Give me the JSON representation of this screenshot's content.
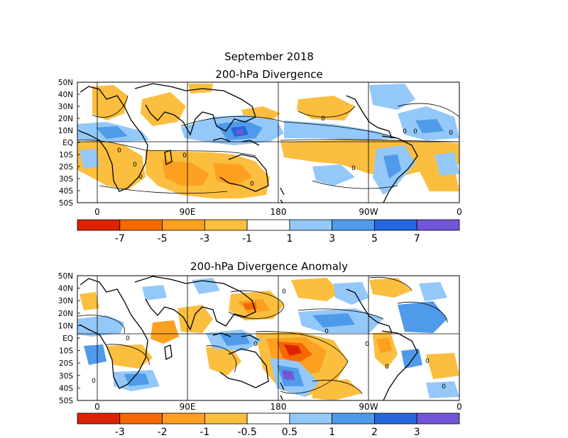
{
  "header": {
    "title": "September 2018"
  },
  "lat_labels": [
    "50N",
    "40N",
    "30N",
    "20N",
    "10N",
    "EQ",
    "10S",
    "20S",
    "30S",
    "40S",
    "50S"
  ],
  "lon_labels": [
    "0",
    "90E",
    "180",
    "90W",
    "0"
  ],
  "colors": {
    "c1": "#dd2200",
    "c2": "#f66800",
    "c3": "#fda020",
    "c4": "#fbbe3e",
    "c5": "#ffffff",
    "c6": "#93c8f8",
    "c7": "#4f9ae9",
    "c8": "#2467df",
    "c9": "#7355d8"
  },
  "panels": [
    {
      "title": "200-hPa Divergence",
      "colorbar": {
        "ticks": [
          "-7",
          "-5",
          "-3",
          "-1",
          "1",
          "3",
          "5",
          "7"
        ],
        "colors": [
          "#dd2200",
          "#f66800",
          "#fda020",
          "#fbbe3e",
          "#ffffff",
          "#93c8f8",
          "#4f9ae9",
          "#2467df",
          "#7355d8"
        ]
      },
      "contour_labels": [
        "0",
        "0",
        "0",
        "0",
        "0",
        "0",
        "0",
        "0",
        "0",
        "0"
      ]
    },
    {
      "title": "200-hPa Divergence Anomaly",
      "colorbar": {
        "ticks": [
          "-3",
          "-2",
          "-1",
          "-0.5",
          "0.5",
          "1",
          "2",
          "3"
        ],
        "colors": [
          "#dd2200",
          "#f66800",
          "#fda020",
          "#fbbe3e",
          "#ffffff",
          "#93c8f8",
          "#4f9ae9",
          "#2467df",
          "#7355d8"
        ]
      },
      "contour_labels": [
        "0",
        "0",
        "0",
        "0",
        "0",
        "0",
        "0",
        "0",
        "0"
      ]
    }
  ]
}
